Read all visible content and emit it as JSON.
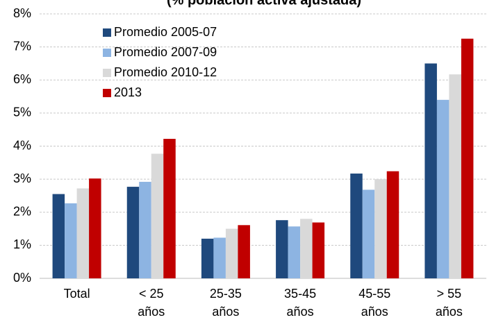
{
  "chart_data": {
    "type": "bar",
    "title": "(% población activa ajustada)",
    "categories": [
      "Total",
      "< 25\naños",
      "25-35\naños",
      "35-45\naños",
      "45-55\naños",
      "> 55\naños"
    ],
    "series": [
      {
        "name": "Promedio 2005-07",
        "color": "#1f497d",
        "values": [
          2.55,
          2.77,
          1.2,
          1.76,
          3.17,
          6.5
        ]
      },
      {
        "name": "Promedio 2007-09",
        "color": "#8db4e2",
        "values": [
          2.27,
          2.92,
          1.23,
          1.57,
          2.68,
          5.4
        ]
      },
      {
        "name": "Promedio 2010-12",
        "color": "#d9d9d9",
        "values": [
          2.72,
          3.77,
          1.5,
          1.8,
          3.0,
          6.17
        ]
      },
      {
        "name": "2013",
        "color": "#c00000",
        "values": [
          3.02,
          4.22,
          1.61,
          1.69,
          3.24,
          7.25
        ]
      }
    ],
    "ylim": [
      0,
      8
    ],
    "yticks": [
      {
        "value": 0,
        "label": "0%"
      },
      {
        "value": 1,
        "label": "1%"
      },
      {
        "value": 2,
        "label": "2%"
      },
      {
        "value": 3,
        "label": "3%"
      },
      {
        "value": 4,
        "label": "4%"
      },
      {
        "value": 5,
        "label": "5%"
      },
      {
        "value": 6,
        "label": "6%"
      },
      {
        "value": 7,
        "label": "7%"
      },
      {
        "value": 8,
        "label": "8%"
      }
    ],
    "grid": true,
    "legend": "upper left"
  }
}
